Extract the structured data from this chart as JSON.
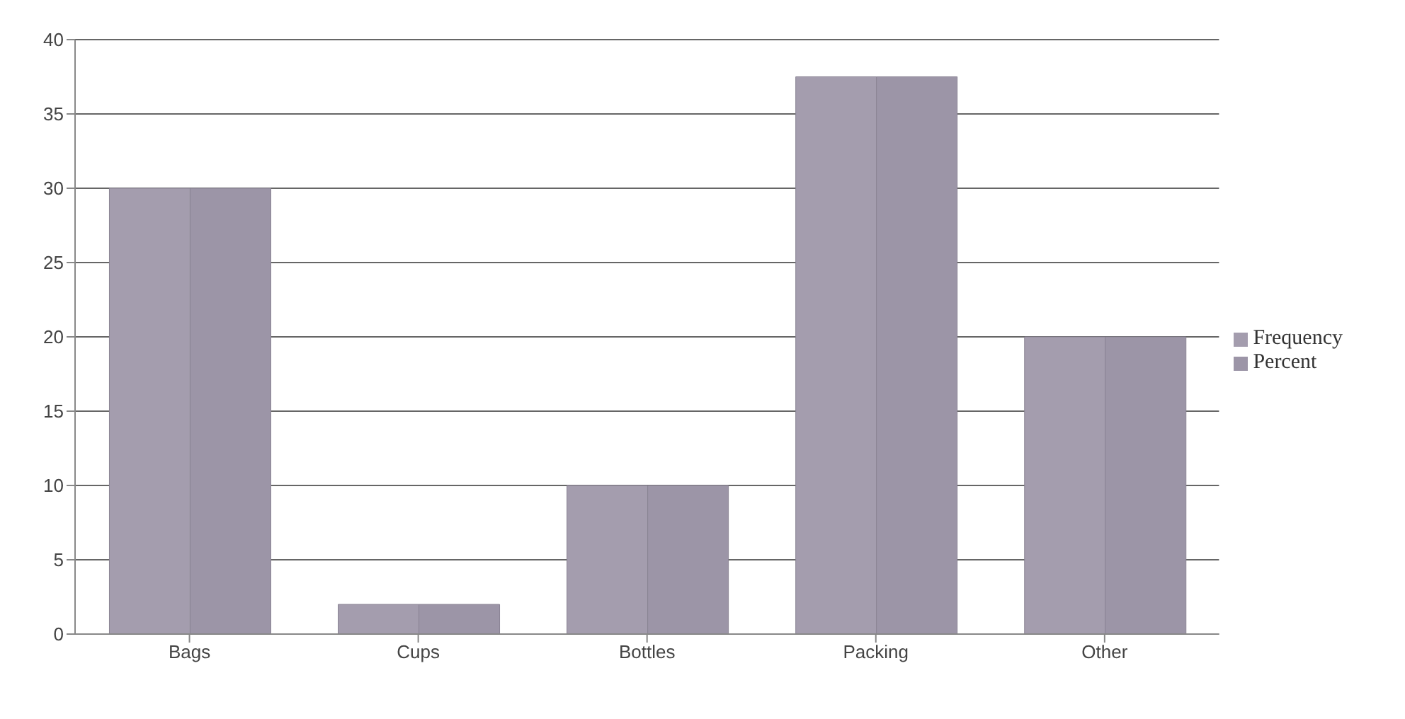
{
  "chart_data": {
    "type": "bar",
    "categories": [
      "Bags",
      "Cups",
      "Bottles",
      "Packing",
      "Other"
    ],
    "series": [
      {
        "name": "Frequency",
        "color": "#a49dae",
        "values": [
          30,
          2,
          10,
          37.5,
          20
        ]
      },
      {
        "name": "Percent",
        "color": "#9c95a7",
        "values": [
          30,
          2,
          10,
          37.5,
          20
        ]
      }
    ],
    "ylim": [
      0,
      40
    ],
    "yticks": [
      0,
      5,
      10,
      15,
      20,
      25,
      30,
      35,
      40
    ],
    "grid": "y",
    "legend": "right"
  }
}
